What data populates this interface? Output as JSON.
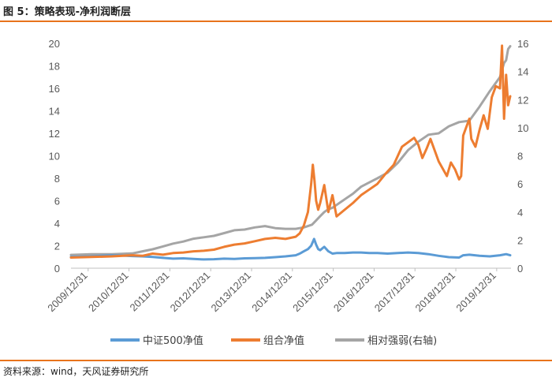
{
  "figure_title": "图 5：策略表现-净利润断层",
  "source_note": "资料来源：wind，天风证券研究所",
  "colors": {
    "accent": "#E8731C",
    "rule": "#E8731C",
    "zz500": "#5B9BD5",
    "portfolio": "#ED7D31",
    "relative": "#A5A5A5"
  },
  "chart_data": {
    "type": "line",
    "x_tick_labels": [
      "2009/12/31",
      "2010/12/31",
      "2011/12/31",
      "2012/12/31",
      "2013/12/31",
      "2014/12/31",
      "2015/12/31",
      "2016/12/31",
      "2017/12/31",
      "2018/12/31",
      "2019/12/31"
    ],
    "y_left": {
      "range": [
        0,
        20
      ],
      "ticks": [
        "0",
        "2",
        "4",
        "6",
        "8",
        "10",
        "12",
        "14",
        "16",
        "18",
        "20"
      ]
    },
    "y_right": {
      "range": [
        0,
        16
      ],
      "ticks": [
        "0",
        "2",
        "4",
        "6",
        "8",
        "10",
        "12",
        "14",
        "16"
      ]
    },
    "grid": false,
    "legend_position": "bottom",
    "series": [
      {
        "name": "中证500净值",
        "axis": "left",
        "x": [
          2009.5,
          2009.75,
          2010.0,
          2010.25,
          2010.5,
          2010.75,
          2011.0,
          2011.25,
          2011.5,
          2011.75,
          2012.0,
          2012.25,
          2012.5,
          2012.75,
          2013.0,
          2013.25,
          2013.5,
          2013.75,
          2014.0,
          2014.25,
          2014.5,
          2014.75,
          2015.0,
          2015.1,
          2015.2,
          2015.3,
          2015.38,
          2015.45,
          2015.5,
          2015.55,
          2015.6,
          2015.7,
          2015.8,
          2015.9,
          2016.0,
          2016.2,
          2016.4,
          2016.6,
          2016.8,
          2017.0,
          2017.25,
          2017.5,
          2017.75,
          2018.0,
          2018.25,
          2018.5,
          2018.75,
          2019.0,
          2019.1,
          2019.25,
          2019.5,
          2019.75,
          2020.0,
          2020.15,
          2020.25
        ],
        "y": [
          1.0,
          1.02,
          1.05,
          1.1,
          1.15,
          1.12,
          1.08,
          1.05,
          1.0,
          0.92,
          0.85,
          0.88,
          0.82,
          0.78,
          0.8,
          0.85,
          0.82,
          0.88,
          0.9,
          0.92,
          0.98,
          1.05,
          1.15,
          1.3,
          1.5,
          1.7,
          2.0,
          2.6,
          2.1,
          1.7,
          1.6,
          1.9,
          1.5,
          1.3,
          1.35,
          1.35,
          1.4,
          1.4,
          1.35,
          1.35,
          1.3,
          1.35,
          1.4,
          1.35,
          1.25,
          1.1,
          0.98,
          0.95,
          1.15,
          1.2,
          1.1,
          1.05,
          1.15,
          1.25,
          1.15
        ]
      },
      {
        "name": "组合净值",
        "axis": "left",
        "x": [
          2009.5,
          2010.0,
          2010.5,
          2011.0,
          2011.25,
          2011.5,
          2011.75,
          2012.0,
          2012.25,
          2012.5,
          2012.75,
          2013.0,
          2013.25,
          2013.5,
          2013.75,
          2014.0,
          2014.25,
          2014.5,
          2014.75,
          2015.0,
          2015.1,
          2015.2,
          2015.3,
          2015.38,
          2015.42,
          2015.46,
          2015.5,
          2015.55,
          2015.6,
          2015.7,
          2015.8,
          2015.9,
          2016.0,
          2016.2,
          2016.4,
          2016.6,
          2016.8,
          2017.0,
          2017.2,
          2017.4,
          2017.6,
          2017.75,
          2017.9,
          2018.0,
          2018.1,
          2018.2,
          2018.3,
          2018.5,
          2018.7,
          2018.8,
          2018.9,
          2019.0,
          2019.05,
          2019.1,
          2019.2,
          2019.25,
          2019.3,
          2019.4,
          2019.5,
          2019.6,
          2019.7,
          2019.8,
          2019.9,
          2020.0,
          2020.05,
          2020.1,
          2020.15,
          2020.2,
          2020.25
        ],
        "y": [
          0.95,
          1.0,
          1.05,
          1.15,
          1.1,
          1.3,
          1.2,
          1.35,
          1.4,
          1.5,
          1.55,
          1.65,
          1.9,
          2.1,
          2.2,
          2.4,
          2.6,
          2.7,
          2.6,
          2.8,
          3.1,
          3.8,
          5.0,
          7.5,
          9.2,
          7.8,
          6.0,
          5.2,
          5.8,
          7.4,
          5.0,
          6.5,
          4.6,
          5.2,
          5.8,
          6.5,
          7.0,
          7.5,
          8.4,
          9.2,
          10.8,
          11.2,
          11.6,
          11.0,
          9.8,
          10.6,
          11.5,
          9.5,
          8.2,
          9.4,
          8.8,
          7.9,
          8.2,
          11.8,
          12.8,
          13.3,
          11.5,
          10.8,
          12.3,
          13.6,
          12.4,
          15.2,
          16.2,
          16.0,
          19.8,
          13.3,
          17.2,
          14.5,
          15.3
        ]
      },
      {
        "name": "相对强弱(右轴)",
        "axis": "right",
        "x": [
          2009.5,
          2010.0,
          2010.5,
          2011.0,
          2011.25,
          2011.5,
          2011.75,
          2012.0,
          2012.25,
          2012.5,
          2012.75,
          2013.0,
          2013.25,
          2013.5,
          2013.75,
          2014.0,
          2014.25,
          2014.5,
          2014.75,
          2015.0,
          2015.2,
          2015.4,
          2015.5,
          2015.6,
          2015.7,
          2015.8,
          2015.9,
          2016.0,
          2016.2,
          2016.4,
          2016.6,
          2016.8,
          2017.0,
          2017.25,
          2017.5,
          2017.75,
          2018.0,
          2018.25,
          2018.5,
          2018.75,
          2019.0,
          2019.25,
          2019.5,
          2019.75,
          2020.0,
          2020.1,
          2020.15,
          2020.2,
          2020.25
        ],
        "y": [
          0.95,
          1.0,
          1.0,
          1.05,
          1.2,
          1.35,
          1.55,
          1.75,
          1.9,
          2.1,
          2.2,
          2.3,
          2.5,
          2.7,
          2.75,
          2.9,
          3.0,
          2.85,
          2.8,
          2.8,
          2.9,
          3.1,
          3.4,
          3.7,
          4.0,
          4.2,
          4.3,
          4.5,
          4.9,
          5.3,
          5.8,
          6.1,
          6.4,
          6.8,
          7.5,
          8.4,
          9.0,
          9.5,
          9.6,
          10.1,
          10.4,
          10.5,
          11.5,
          12.6,
          13.6,
          14.6,
          14.8,
          15.6,
          15.8
        ]
      }
    ]
  }
}
